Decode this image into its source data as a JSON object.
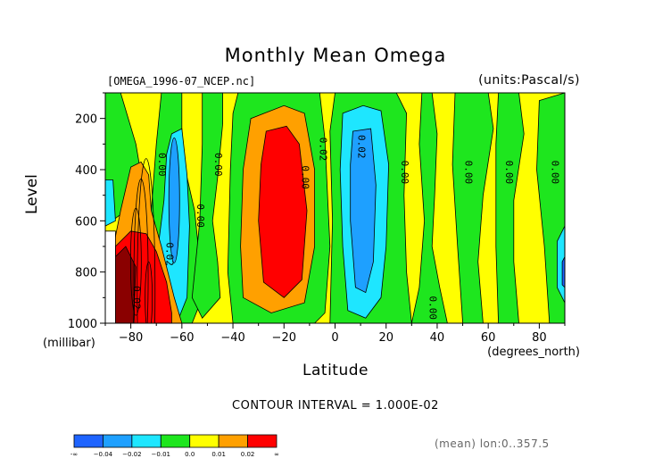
{
  "chart_data": {
    "type": "heatmap",
    "title": "Monthly Mean Omega",
    "file_label": "[OMEGA_1996-07_NCEP.nc]",
    "units_label": "(units:Pascal/s)",
    "xlabel": "Latitude",
    "x_unit": "(degrees_north)",
    "ylabel": "Level",
    "y_unit": "(millibar)",
    "xlim": [
      -90,
      90
    ],
    "ylim": [
      1000,
      100
    ],
    "x_ticks": [
      -80,
      -60,
      -40,
      -20,
      0,
      20,
      40,
      60,
      80
    ],
    "y_ticks": [
      200,
      400,
      600,
      800,
      1000
    ],
    "contour_interval_text": "CONTOUR INTERVAL = 1.000E-02",
    "averaging_text": "(mean) lon:0..357.5",
    "colorbar": {
      "labels": [
        "-∞",
        "−0.04",
        "−0.02",
        "−0.01",
        "0.0",
        "0.01",
        "0.02",
        "∞"
      ],
      "colors": [
        "#1e64ff",
        "#1ea0ff",
        "#1ee6ff",
        "#1ee61e",
        "#ffff00",
        "#ffa000",
        "#ff0000"
      ]
    },
    "fields": [
      {
        "level": "negative_strong",
        "lat_range": [
          8,
          20
        ],
        "p_range": [
          250,
          950
        ],
        "value": -0.03
      },
      {
        "level": "negative",
        "lat_range": [
          0,
          24
        ],
        "p_range": [
          120,
          980
        ],
        "value": -0.015
      },
      {
        "level": "positive_strong",
        "lat_range": [
          -30,
          -8
        ],
        "p_range": [
          230,
          870
        ],
        "value": 0.025
      },
      {
        "level": "positive",
        "lat_range": [
          -38,
          -2
        ],
        "p_range": [
          150,
          950
        ],
        "value": 0.015
      },
      {
        "level": "positive_very_strong",
        "lat_range": [
          -88,
          -68
        ],
        "p_range": [
          660,
          1000
        ],
        "value": 0.04
      },
      {
        "level": "negative",
        "lat_range": [
          -70,
          -56
        ],
        "p_range": [
          300,
          950
        ],
        "value": -0.015
      }
    ],
    "contour_labels": [
      {
        "text": "0.00",
        "lat": -69,
        "p": 380
      },
      {
        "text": "0.00",
        "lat": -47,
        "p": 380
      },
      {
        "text": "0.00",
        "lat": -54,
        "p": 580
      },
      {
        "text": "0.02",
        "lat": -66,
        "p": 730
      },
      {
        "text": "0.02",
        "lat": -79,
        "p": 900
      },
      {
        "text": "0.00",
        "lat": -13,
        "p": 430
      },
      {
        "text": "0.02",
        "lat": -6,
        "p": 320
      },
      {
        "text": "0.02",
        "lat": 9,
        "p": 310
      },
      {
        "text": "0.00",
        "lat": 26,
        "p": 410
      },
      {
        "text": "0.00",
        "lat": 51,
        "p": 410
      },
      {
        "text": "0.00",
        "lat": 67,
        "p": 410
      },
      {
        "text": "0.00",
        "lat": 85,
        "p": 410
      },
      {
        "text": "0.00",
        "lat": 37,
        "p": 940
      }
    ]
  }
}
